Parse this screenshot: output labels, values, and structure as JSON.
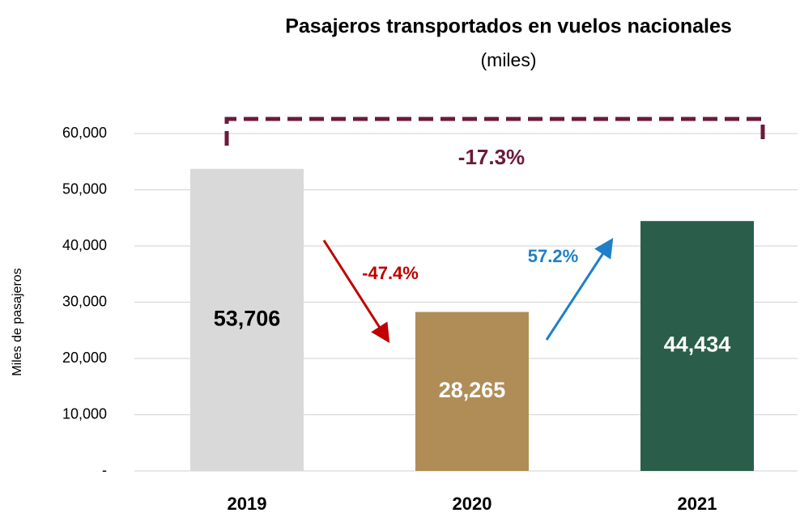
{
  "chart_data": {
    "type": "bar",
    "title": "Pasajeros transportados en vuelos nacionales",
    "subtitle": "(miles)",
    "y_label": "Miles de pasajeros",
    "categories": [
      "2019",
      "2020",
      "2021"
    ],
    "values": [
      53706,
      28265,
      44434
    ],
    "value_labels": [
      "53,706",
      "28,265",
      "44,434"
    ],
    "colors": [
      "#d9d9d9",
      "#b08d57",
      "#2a5e4a"
    ],
    "value_label_colors": [
      "#000000",
      "#ffffff",
      "#ffffff"
    ],
    "ylim": [
      0,
      60000
    ],
    "yticks": [
      {
        "value": 0,
        "label": "-"
      },
      {
        "value": 10000,
        "label": "10,000"
      },
      {
        "value": 20000,
        "label": "20,000"
      },
      {
        "value": 30000,
        "label": "30,000"
      },
      {
        "value": 40000,
        "label": "40,000"
      },
      {
        "value": 50000,
        "label": "50,000"
      },
      {
        "value": 60000,
        "label": "60,000"
      }
    ],
    "grid": true,
    "annotations": [
      {
        "text": "-47.4%",
        "color": "#c00000"
      },
      {
        "text": "57.2%",
        "color": "#1f7fc8"
      },
      {
        "text": "-17.3%",
        "color": "#6b1a3a"
      }
    ]
  }
}
